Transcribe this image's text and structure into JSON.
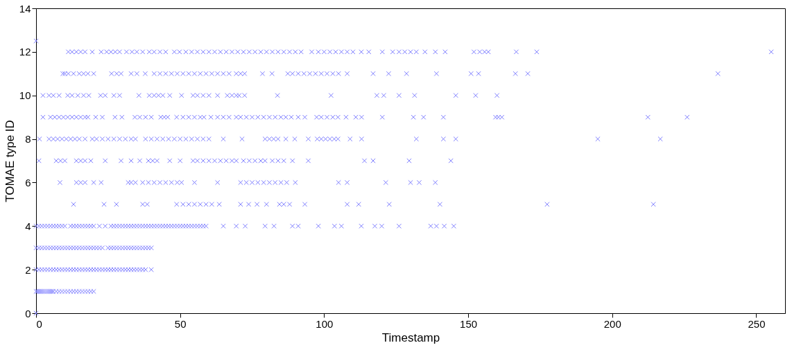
{
  "chart_data": {
    "type": "scatter",
    "xlabel": "Timestamp",
    "ylabel": "TOMAE type ID",
    "xlim": [
      0,
      260
    ],
    "xticks": [
      0,
      50,
      100,
      150,
      200,
      250
    ],
    "ylim": [
      0,
      14
    ],
    "yticks": [
      0,
      2,
      4,
      6,
      8,
      10,
      12,
      14
    ],
    "marker": "cross",
    "grid": false,
    "legend": false,
    "series": [
      {
        "color": "#7f7fff",
        "values": [
          12.5,
          0
        ],
        "x": [
          0,
          0
        ]
      },
      {
        "color": "#7f7fff",
        "values": [
          1,
          1,
          1,
          1,
          1,
          1,
          1,
          1,
          1,
          1,
          1,
          1,
          1,
          1,
          1,
          1,
          1,
          1,
          1,
          1,
          1,
          1,
          1,
          1,
          1,
          1,
          1
        ],
        "x": [
          0,
          0.5,
          1,
          1.5,
          2,
          2.5,
          3,
          3.5,
          4,
          4.5,
          5,
          5.5,
          6,
          7,
          8,
          9,
          10,
          11,
          12,
          13,
          14,
          15,
          16,
          17,
          18,
          19,
          20
        ]
      },
      {
        "color": "#7f7fff",
        "values": [
          2,
          2,
          2,
          2,
          2,
          2,
          2,
          2,
          2,
          2,
          2,
          2,
          2,
          2,
          2,
          2,
          2,
          2,
          2,
          2,
          2,
          2,
          2,
          2,
          2,
          2,
          2,
          2,
          2,
          2,
          2,
          2,
          2,
          2,
          2,
          2,
          2,
          2,
          2,
          2
        ],
        "x": [
          0,
          1,
          2,
          3,
          4,
          5,
          6,
          7,
          8,
          9,
          10,
          11,
          12,
          13,
          14,
          15,
          16,
          17,
          18,
          19,
          20,
          21,
          22,
          23,
          24,
          25,
          26,
          27,
          28,
          29,
          30,
          31,
          32,
          33,
          34,
          35,
          36,
          37,
          38,
          40
        ]
      },
      {
        "color": "#7f7fff",
        "values": [
          3,
          3,
          3,
          3,
          3,
          3,
          3,
          3,
          3,
          3,
          3,
          3,
          3,
          3,
          3,
          3,
          3,
          3,
          3,
          3,
          3,
          3,
          3,
          3,
          3,
          3,
          3,
          3,
          3,
          3,
          3,
          3,
          3,
          3,
          3,
          3,
          3,
          3,
          3,
          3
        ],
        "x": [
          0,
          1,
          2,
          3,
          4,
          5,
          6,
          7,
          8,
          9,
          10,
          11,
          12,
          13,
          14,
          15,
          16,
          17,
          18,
          19,
          20,
          21,
          22,
          23,
          25,
          26,
          27,
          28,
          29,
          30,
          31,
          32,
          33,
          34,
          35,
          36,
          37,
          38,
          39,
          40
        ]
      },
      {
        "color": "#7f7fff",
        "values": [
          4,
          4,
          4,
          4,
          4,
          4,
          4,
          4,
          4,
          4,
          4,
          4,
          4,
          4,
          4,
          4,
          4,
          4,
          4,
          4,
          4,
          4,
          4,
          4,
          4,
          4,
          4,
          4,
          4,
          4,
          4,
          4,
          4,
          4,
          4,
          4,
          4,
          4,
          4,
          4,
          4,
          4,
          4,
          4,
          4,
          4,
          4,
          4,
          4,
          4,
          4,
          4,
          4,
          4,
          4,
          4,
          4,
          4,
          4,
          4,
          4,
          4,
          4,
          4,
          4,
          4,
          4,
          4,
          4,
          4,
          4,
          4,
          4,
          4
        ],
        "x": [
          0,
          1,
          2,
          3,
          4,
          5,
          6,
          7,
          8,
          9,
          10,
          12,
          13,
          14,
          15,
          16,
          17,
          18,
          19,
          20,
          22,
          24,
          26,
          27,
          28,
          29,
          30,
          31,
          32,
          33,
          34,
          35,
          36,
          37,
          38,
          39,
          40,
          41,
          42,
          43,
          44,
          45,
          46,
          47,
          48,
          49,
          50,
          51,
          52,
          53,
          54,
          55,
          56,
          57,
          58,
          59,
          65,
          69.5,
          72.6,
          79.5,
          82.6,
          89,
          91,
          98,
          103.6,
          106,
          112.9,
          117.6,
          120,
          126,
          137,
          139,
          141.7,
          145
        ]
      },
      {
        "color": "#7f7fff",
        "values": [
          5,
          5,
          5,
          5,
          5,
          5,
          5,
          5,
          5,
          5,
          5,
          5,
          5,
          5,
          5,
          5,
          5,
          5,
          5,
          5,
          5,
          5,
          5,
          5,
          5,
          5,
          5
        ],
        "x": [
          13,
          23.6,
          27.9,
          37,
          38.6,
          48.8,
          51,
          53,
          55,
          57,
          59,
          61,
          63.6,
          71,
          73.8,
          76.7,
          80,
          84.5,
          86,
          88,
          93.3,
          108,
          112,
          122.6,
          140.2,
          177.4,
          214.3
        ]
      },
      {
        "color": "#7f7fff",
        "values": [
          6,
          6,
          6,
          6,
          6,
          6,
          6,
          6,
          6,
          6,
          6,
          6,
          6,
          6,
          6,
          6,
          6,
          6,
          6,
          6,
          6,
          6,
          6,
          6,
          6,
          6,
          6,
          6,
          6,
          6,
          6,
          6,
          6,
          6,
          6
        ],
        "x": [
          8.3,
          14,
          15.5,
          17,
          20,
          22.6,
          32,
          33,
          34.5,
          37,
          39,
          41,
          43,
          45,
          47,
          49,
          50.5,
          55,
          63,
          71,
          73,
          75,
          77,
          79,
          81,
          83,
          85,
          87,
          90,
          105,
          108,
          121.4,
          130,
          133,
          138.6
        ]
      },
      {
        "color": "#7f7fff",
        "values": [
          7,
          7,
          7,
          7,
          7,
          7,
          7,
          7,
          7,
          7,
          7,
          7,
          7,
          7,
          7,
          7,
          7,
          7,
          7,
          7,
          7,
          7,
          7,
          7,
          7,
          7,
          7,
          7,
          7,
          7,
          7,
          7,
          7,
          7,
          7,
          7,
          7,
          7,
          7,
          7
        ],
        "x": [
          1,
          7,
          8.5,
          10,
          14,
          15.5,
          17,
          19,
          24,
          29.5,
          33,
          36,
          39,
          40.5,
          42,
          46.4,
          50,
          54.5,
          56,
          58,
          60,
          62,
          64,
          66,
          68,
          69.5,
          72,
          74,
          76,
          78,
          79.5,
          82,
          84,
          86,
          89,
          94.5,
          114,
          117,
          129.5,
          144
        ]
      },
      {
        "color": "#7f7fff",
        "values": [
          8,
          8,
          8,
          8,
          8,
          8,
          8,
          8,
          8,
          8,
          8,
          8,
          8,
          8,
          8,
          8,
          8,
          8,
          8,
          8,
          8,
          8,
          8,
          8,
          8,
          8,
          8,
          8,
          8,
          8,
          8,
          8,
          8,
          8,
          8,
          8,
          8,
          8,
          8,
          8,
          8,
          8,
          8,
          8,
          8,
          8,
          8,
          8,
          8,
          8,
          8,
          8,
          8
        ],
        "x": [
          1.2,
          4.5,
          6,
          7.5,
          9,
          10.5,
          12,
          13.5,
          15,
          17,
          19.5,
          21,
          23,
          25,
          27,
          29,
          31,
          33,
          34.5,
          38,
          40,
          42,
          44,
          46,
          48,
          50,
          52,
          54,
          56,
          58,
          60,
          65,
          71.5,
          79.5,
          81,
          82.5,
          84,
          86.7,
          89.8,
          94.5,
          97.6,
          99,
          100.5,
          102,
          103.5,
          104.8,
          109,
          113,
          132,
          141.4,
          145.7,
          195,
          216.7
        ]
      },
      {
        "color": "#7f7fff",
        "values": [
          9,
          9,
          9,
          9,
          9,
          9,
          9,
          9,
          9,
          9,
          9,
          9,
          9,
          9,
          9,
          9,
          9,
          9,
          9,
          9,
          9,
          9,
          9,
          9,
          9,
          9,
          9,
          9,
          9,
          9,
          9,
          9,
          9,
          9,
          9,
          9,
          9,
          9,
          9,
          9,
          9,
          9,
          9,
          9,
          9,
          9,
          9,
          9,
          9,
          9,
          9,
          9,
          9,
          9,
          9,
          9,
          9,
          9,
          9,
          9,
          9,
          9
        ],
        "x": [
          2.4,
          5,
          6.5,
          8,
          9.5,
          11,
          12.5,
          14,
          15.5,
          17,
          18,
          20.7,
          23,
          27.4,
          29.8,
          34.3,
          36,
          38,
          40,
          43.3,
          44.5,
          45.7,
          48.8,
          51,
          53,
          55,
          57,
          58.3,
          60.7,
          63,
          65,
          67,
          69.5,
          71,
          73,
          75,
          77,
          79,
          81,
          83,
          85,
          86.7,
          88.6,
          91,
          93.3,
          97.4,
          99,
          101,
          103,
          104.8,
          107.6,
          111,
          113,
          120.2,
          131,
          134.5,
          141.4,
          159.5,
          160.5,
          161.7,
          212.4,
          226
        ]
      },
      {
        "color": "#7f7fff",
        "values": [
          10,
          10,
          10,
          10,
          10,
          10,
          10,
          10,
          10,
          10,
          10,
          10,
          10,
          10,
          10,
          10,
          10,
          10,
          10,
          10,
          10,
          10,
          10,
          10,
          10,
          10,
          10,
          10,
          10,
          10,
          10,
          10,
          10,
          10,
          10,
          10,
          10,
          10,
          10
        ],
        "x": [
          2.4,
          4.5,
          6,
          8,
          11,
          12.5,
          14.5,
          16.5,
          18.3,
          22.4,
          24,
          27,
          29,
          35.7,
          39.3,
          41,
          42.5,
          44,
          46.4,
          50.5,
          54.5,
          56,
          58,
          60,
          63,
          66.4,
          68,
          69.5,
          70.5,
          72.4,
          83.8,
          102.4,
          118.3,
          120.7,
          126,
          131.4,
          145.7,
          152.6,
          160
        ]
      },
      {
        "color": "#7f7fff",
        "values": [
          11,
          11,
          11,
          11,
          11,
          11,
          11,
          11,
          11,
          11,
          11,
          11,
          11,
          11,
          11,
          11,
          11,
          11,
          11,
          11,
          11,
          11,
          11,
          11,
          11,
          11,
          11,
          11,
          11,
          11,
          11,
          11,
          11,
          11,
          11,
          11,
          11,
          11,
          11,
          11,
          11,
          11,
          11,
          11,
          11,
          11,
          11,
          11,
          11,
          11,
          11,
          11,
          11
        ],
        "x": [
          9.3,
          10,
          11.2,
          13,
          15,
          16.5,
          18,
          20,
          26.2,
          28,
          29.5,
          33,
          35,
          37.9,
          41,
          43,
          45,
          47,
          49,
          51,
          53,
          55,
          57,
          59,
          61,
          63,
          65,
          67,
          69.5,
          71,
          72.4,
          78.6,
          81.9,
          87.4,
          89,
          91,
          93,
          95,
          97,
          99,
          101,
          103,
          105,
          108,
          117,
          122.4,
          128.6,
          139,
          151,
          153.6,
          166.4,
          170.7,
          236.7
        ]
      },
      {
        "color": "#7f7fff",
        "values": [
          12,
          12,
          12,
          12,
          12,
          12,
          12,
          12,
          12,
          12,
          12,
          12,
          12,
          12,
          12,
          12,
          12,
          12,
          12,
          12,
          12,
          12,
          12,
          12,
          12,
          12,
          12,
          12,
          12,
          12,
          12,
          12,
          12,
          12,
          12,
          12,
          12,
          12,
          12,
          12,
          12,
          12,
          12,
          12,
          12,
          12,
          12,
          12,
          12,
          12,
          12,
          12,
          12,
          12,
          12,
          12,
          12,
          12,
          12,
          12,
          12,
          12,
          12,
          12,
          12,
          12,
          12,
          12
        ],
        "x": [
          11.2,
          12.5,
          14,
          15.5,
          17,
          19.5,
          22.6,
          24.5,
          26,
          27.5,
          29,
          31.4,
          33.3,
          35,
          37,
          39.3,
          41,
          43,
          45,
          48,
          49.8,
          52,
          54,
          56,
          58,
          60,
          62,
          64,
          66,
          68,
          70,
          72,
          74,
          76,
          78,
          80,
          82,
          84,
          86,
          88,
          90,
          92,
          95.7,
          98,
          100,
          102,
          104,
          106,
          108,
          110,
          112.9,
          115.5,
          120.2,
          123.8,
          126,
          128,
          130,
          132,
          135,
          138.6,
          142,
          152,
          154,
          155.7,
          157,
          166.7,
          173.8,
          255.2
        ]
      }
    ]
  }
}
